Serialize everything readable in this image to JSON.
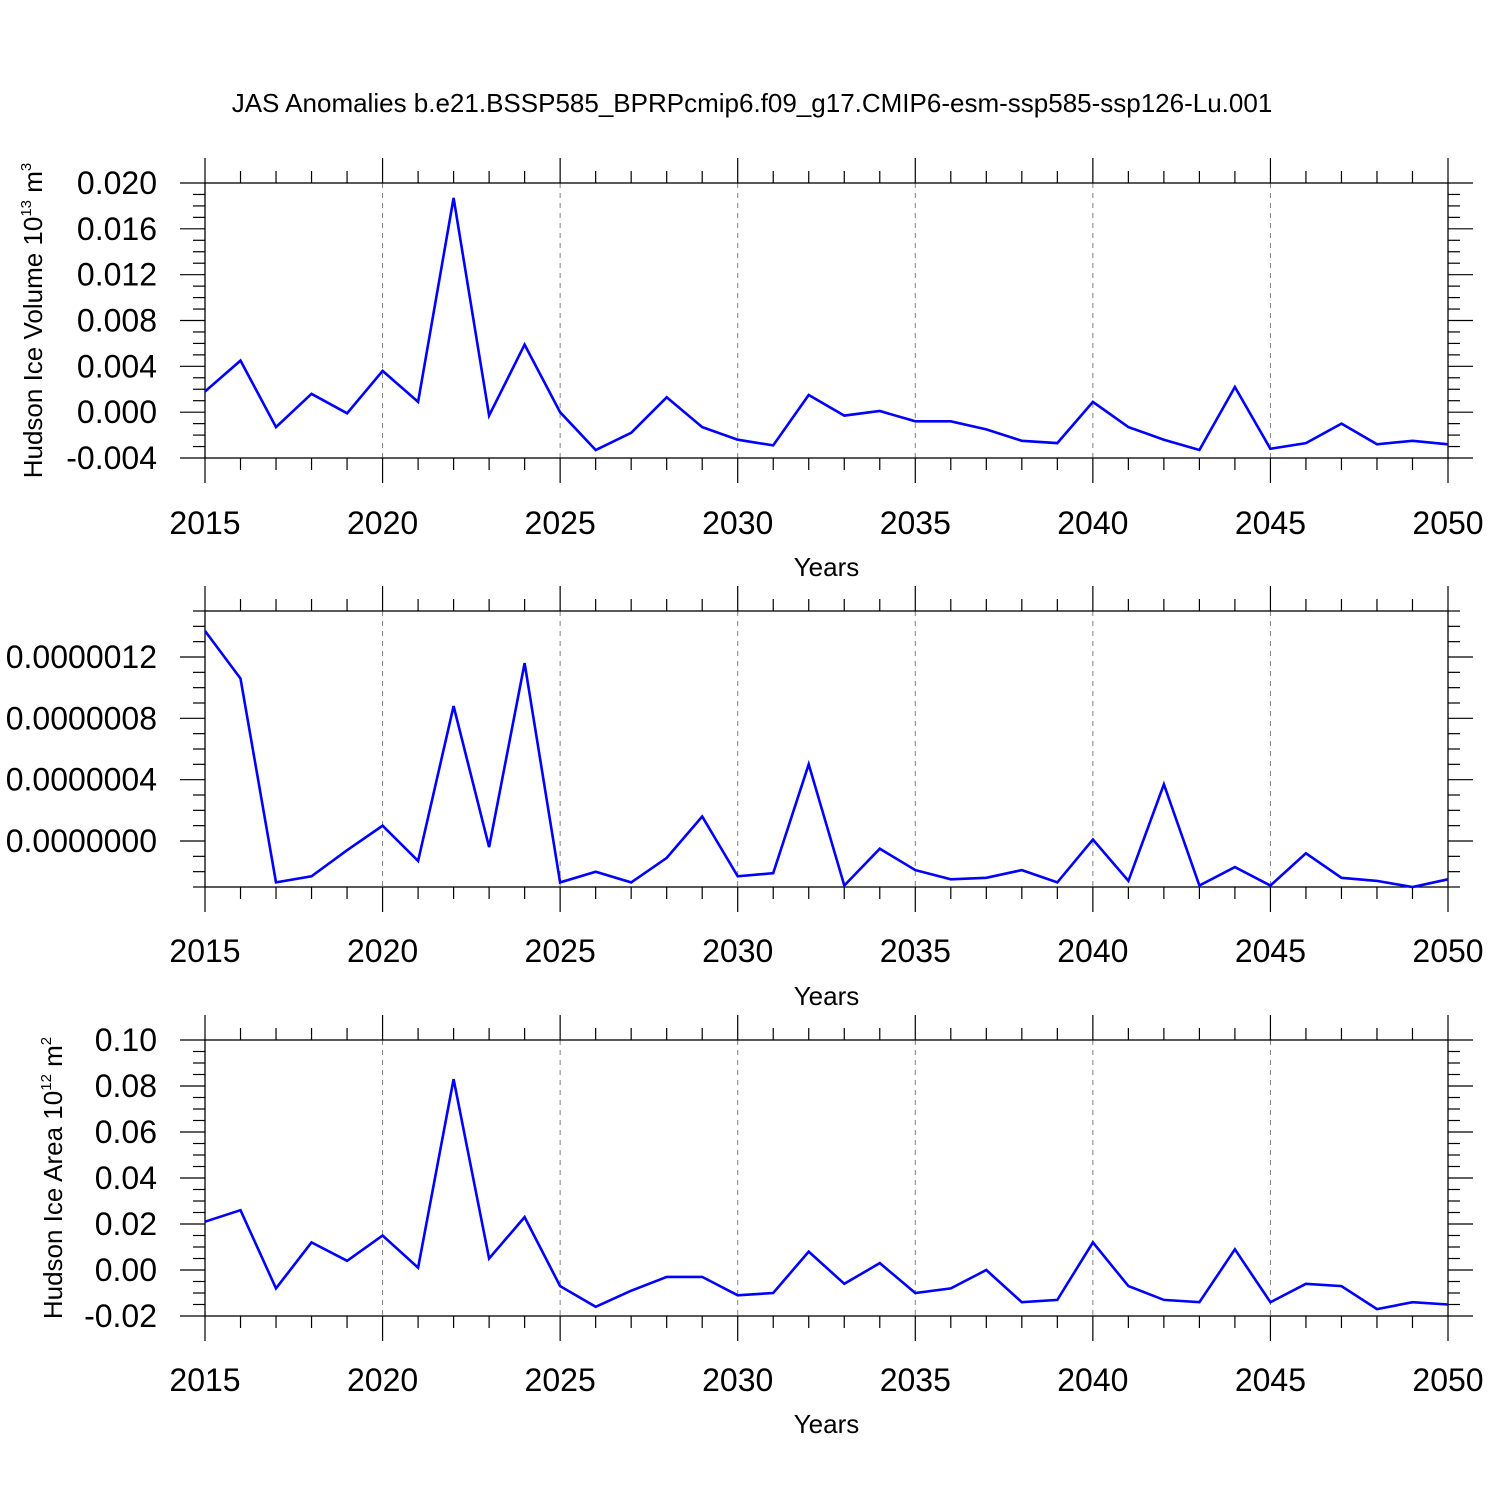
{
  "title": "JAS Anomalies b.e21.BSSP585_BPRPcmip6.f09_g17.CMIP6-esm-ssp585-ssp126-Lu.001",
  "colors": {
    "line": "#0000ff",
    "axes": "#000000",
    "grid": "#808080"
  },
  "chart_data": [
    {
      "type": "line",
      "name": "volume",
      "ylabel": {
        "text": "Hudson Ice Volume 10",
        "sup": "13",
        "unit": " m",
        "unit_sup": "3"
      },
      "xlabel": "Years",
      "xlim": [
        2015,
        2050
      ],
      "ylim": [
        -0.004,
        0.02
      ],
      "xticks": [
        "2015",
        "2020",
        "2025",
        "2030",
        "2035",
        "2040",
        "2045",
        "2050"
      ],
      "yticks": [
        "-0.004",
        "0.000",
        "0.004",
        "0.008",
        "0.012",
        "0.016",
        "0.020"
      ],
      "x": [
        2015,
        2016,
        2017,
        2018,
        2019,
        2020,
        2021,
        2022,
        2023,
        2024,
        2025,
        2026,
        2027,
        2028,
        2029,
        2030,
        2031,
        2032,
        2033,
        2034,
        2035,
        2036,
        2037,
        2038,
        2039,
        2040,
        2041,
        2042,
        2043,
        2044,
        2045,
        2046,
        2047,
        2048,
        2049,
        2050
      ],
      "values": [
        0.0018,
        0.0045,
        -0.0013,
        0.0016,
        -0.0001,
        0.0036,
        0.0009,
        0.0187,
        -0.0003,
        0.0059,
        0.0,
        -0.0033,
        -0.0018,
        0.0013,
        -0.0013,
        -0.0024,
        -0.0029,
        0.0015,
        -0.0003,
        0.0001,
        -0.0008,
        -0.0008,
        -0.0015,
        -0.0025,
        -0.0027,
        0.0009,
        -0.0013,
        -0.0024,
        -0.0033,
        0.0022,
        -0.0032,
        -0.0027,
        -0.001,
        -0.0028,
        -0.0025,
        -0.0028
      ]
    },
    {
      "type": "line",
      "name": "middle",
      "ylabel": {
        "text": "",
        "sup": "",
        "unit": "",
        "unit_sup": ""
      },
      "xlabel": "Years",
      "xlim": [
        2015,
        2050
      ],
      "ylim": [
        -3e-07,
        1.5e-06
      ],
      "xticks": [
        "2015",
        "2020",
        "2025",
        "2030",
        "2035",
        "2040",
        "2045",
        "2050"
      ],
      "yticks": [
        "0.0000000",
        "0.0000004",
        "0.0000008",
        "0.0000012"
      ],
      "ytick_values": [
        0.0,
        4e-07,
        8e-07,
        1.2e-06
      ],
      "x": [
        2015,
        2016,
        2017,
        2018,
        2019,
        2020,
        2021,
        2022,
        2023,
        2024,
        2025,
        2026,
        2027,
        2028,
        2029,
        2030,
        2031,
        2032,
        2033,
        2034,
        2035,
        2036,
        2037,
        2038,
        2039,
        2040,
        2041,
        2042,
        2043,
        2044,
        2045,
        2046,
        2047,
        2048,
        2049,
        2050
      ],
      "values": [
        1.37e-06,
        1.06e-06,
        -2.7e-07,
        -2.3e-07,
        -6e-08,
        1e-07,
        -1.3e-07,
        8.8e-07,
        -4e-08,
        1.16e-06,
        -2.7e-07,
        -2e-07,
        -2.7e-07,
        -1.1e-07,
        1.6e-07,
        -2.3e-07,
        -2.1e-07,
        5e-07,
        -2.9e-07,
        -5e-08,
        -1.9e-07,
        -2.5e-07,
        -2.4e-07,
        -1.9e-07,
        -2.7e-07,
        1e-08,
        -2.6e-07,
        3.7e-07,
        -2.9e-07,
        -1.7e-07,
        -2.9e-07,
        -8e-08,
        -2.4e-07,
        -2.6e-07,
        -3e-07,
        -2.5e-07
      ]
    },
    {
      "type": "line",
      "name": "area",
      "ylabel": {
        "text": "Hudson Ice Area 10",
        "sup": "12",
        "unit": " m",
        "unit_sup": "2"
      },
      "xlabel": "Years",
      "xlim": [
        2015,
        2050
      ],
      "ylim": [
        -0.02,
        0.1
      ],
      "xticks": [
        "2015",
        "2020",
        "2025",
        "2030",
        "2035",
        "2040",
        "2045",
        "2050"
      ],
      "yticks": [
        "-0.02",
        "0.00",
        "0.02",
        "0.04",
        "0.06",
        "0.08",
        "0.10"
      ],
      "x": [
        2015,
        2016,
        2017,
        2018,
        2019,
        2020,
        2021,
        2022,
        2023,
        2024,
        2025,
        2026,
        2027,
        2028,
        2029,
        2030,
        2031,
        2032,
        2033,
        2034,
        2035,
        2036,
        2037,
        2038,
        2039,
        2040,
        2041,
        2042,
        2043,
        2044,
        2045,
        2046,
        2047,
        2048,
        2049,
        2050
      ],
      "values": [
        0.021,
        0.026,
        -0.008,
        0.012,
        0.004,
        0.015,
        0.001,
        0.083,
        0.005,
        0.023,
        -0.007,
        -0.016,
        -0.009,
        -0.003,
        -0.003,
        -0.011,
        -0.01,
        0.008,
        -0.006,
        0.003,
        -0.01,
        -0.008,
        0.0,
        -0.014,
        -0.013,
        0.012,
        -0.007,
        -0.013,
        -0.014,
        0.009,
        -0.014,
        -0.006,
        -0.007,
        -0.017,
        -0.014,
        -0.015
      ]
    }
  ]
}
